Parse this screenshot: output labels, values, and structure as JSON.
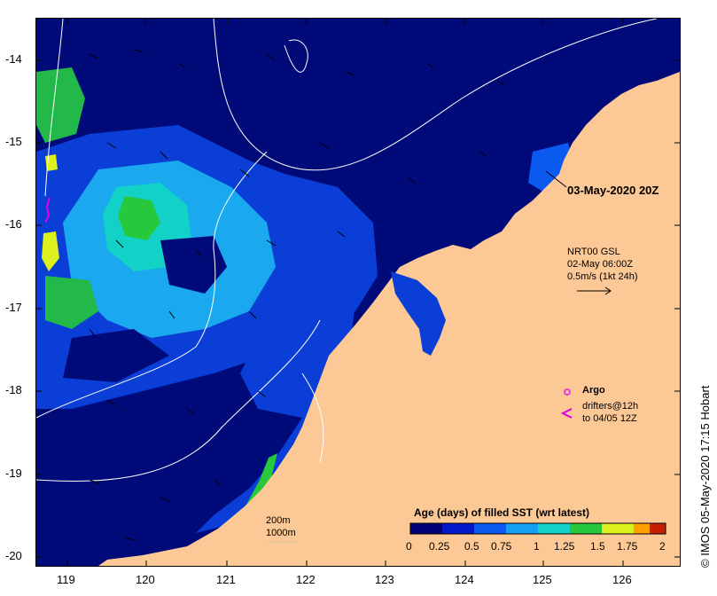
{
  "axes": {
    "lat_ticks": [
      "-14",
      "-15",
      "-16",
      "-17",
      "-18",
      "-19",
      "-20"
    ],
    "lon_ticks": [
      "119",
      "120",
      "121",
      "122",
      "123",
      "124",
      "125",
      "126"
    ]
  },
  "annotations": {
    "date_label": "03-May-2020 20Z",
    "current_label_line1": "NRT00 GSL",
    "current_label_line2": "02-May 06:00Z",
    "current_label_line3": "0.5m/s (1kt 24h)",
    "argo_label": "Argo",
    "drifters_line1": "drifters@12h",
    "drifters_line2": "to 04/05 12Z",
    "contour_200": "200m",
    "contour_1000": "1000m"
  },
  "legend": {
    "title": "Age (days) of filled SST (wrt latest)",
    "ticks": [
      "0",
      "0.25",
      "0.5",
      "0.75",
      "1",
      "1.25",
      "1.5",
      "1.75",
      "2"
    ]
  },
  "credit": "© IMOS 05-May-2020 17:15 Hobart",
  "colors": {
    "land": "#fcc996",
    "ocean_deep": "#000a78",
    "age_scale": [
      "#00007a",
      "#0018c8",
      "#0a5af0",
      "#14a0f0",
      "#12d2c8",
      "#28c83c",
      "#dcf01e",
      "#ffa000",
      "#c81e00",
      "#7a0000"
    ],
    "argo": "#e040e0",
    "drifter": "#e000e0"
  }
}
